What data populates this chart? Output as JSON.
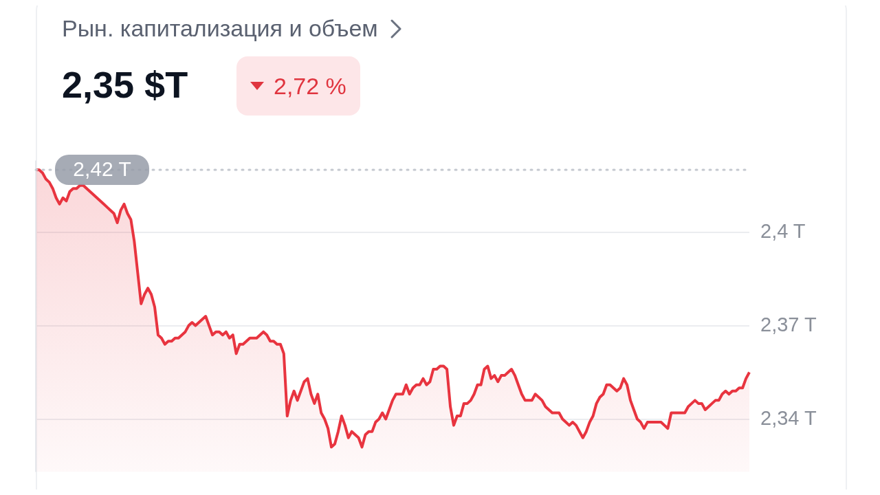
{
  "chart_data": {
    "type": "area",
    "title": "Рын. капитализация и объем",
    "subtitle": "2,35 $T",
    "annotations": [
      "2,72 %"
    ],
    "categories": [
      null,
      null,
      null,
      null,
      null,
      null,
      null,
      null,
      null,
      null,
      null,
      null,
      null,
      null,
      null,
      null,
      null,
      null,
      null,
      null,
      null,
      null,
      null,
      null,
      null,
      null,
      null,
      null,
      null,
      null,
      null,
      null,
      null,
      null,
      null,
      null,
      null,
      null,
      null,
      null,
      null,
      null,
      null,
      null,
      null,
      null,
      null,
      null,
      null,
      null,
      null,
      null,
      null,
      null,
      null,
      null,
      null,
      null,
      null,
      null,
      null,
      null,
      null,
      null,
      null,
      null,
      null,
      null,
      null,
      null,
      null,
      null,
      null,
      null,
      null,
      null,
      null,
      null,
      null,
      null,
      null,
      null,
      null,
      null,
      null,
      null,
      null,
      null,
      null,
      null,
      null,
      null,
      null,
      null,
      null,
      null,
      null,
      null,
      null,
      null,
      null,
      null,
      null,
      null,
      null,
      null,
      null,
      null,
      null,
      null,
      null,
      null,
      null,
      null,
      null,
      null,
      null,
      null,
      null,
      null,
      null,
      null,
      null,
      null,
      null,
      null,
      null,
      null,
      null,
      null,
      null,
      null,
      null,
      null,
      null,
      null,
      null,
      null,
      null,
      null,
      null,
      null,
      null,
      null,
      null,
      null,
      null,
      null,
      null,
      null,
      null,
      null,
      null,
      null,
      null,
      null,
      null,
      null,
      null,
      null,
      null,
      null,
      null,
      null,
      null,
      null,
      null,
      null,
      null,
      null,
      null,
      null,
      null,
      null,
      null,
      null,
      null,
      null,
      null,
      null,
      null,
      null,
      null,
      null,
      null,
      null,
      null,
      null,
      null,
      null,
      null,
      null,
      null,
      null,
      null,
      null,
      null,
      null,
      null,
      null,
      null,
      null,
      null,
      null,
      null,
      null,
      null,
      null,
      null,
      null,
      null
    ],
    "series": [
      {
        "color": "#e8343f",
        "values": [
          2.42,
          2.42,
          2.419,
          2.417,
          2.416,
          2.414,
          2.411,
          2.409,
          2.411,
          2.41,
          2.413,
          2.414,
          2.414,
          2.415,
          2.415,
          2.414,
          2.413,
          2.412,
          2.411,
          2.41,
          2.409,
          2.408,
          2.407,
          2.406,
          2.403,
          2.407,
          2.409,
          2.406,
          2.404,
          2.397,
          2.387,
          2.377,
          2.38,
          2.382,
          2.38,
          2.376,
          2.367,
          2.366,
          2.364,
          2.365,
          2.365,
          2.366,
          2.366,
          2.367,
          2.368,
          2.37,
          2.371,
          2.37,
          2.371,
          2.372,
          2.373,
          2.37,
          2.367,
          2.368,
          2.368,
          2.367,
          2.368,
          2.366,
          2.367,
          2.361,
          2.364,
          2.364,
          2.365,
          2.366,
          2.366,
          2.366,
          2.367,
          2.368,
          2.367,
          2.365,
          2.365,
          2.364,
          2.364,
          2.361,
          2.341,
          2.346,
          2.349,
          2.346,
          2.349,
          2.352,
          2.353,
          2.348,
          2.345,
          2.348,
          2.342,
          2.34,
          2.337,
          2.331,
          2.332,
          2.336,
          2.341,
          2.338,
          2.334,
          2.336,
          2.335,
          2.334,
          2.331,
          2.335,
          2.336,
          2.336,
          2.339,
          2.34,
          2.342,
          2.34,
          2.343,
          2.346,
          2.348,
          2.348,
          2.348,
          2.351,
          2.348,
          2.35,
          2.351,
          2.351,
          2.353,
          2.351,
          2.352,
          2.356,
          2.356,
          2.357,
          2.357,
          2.356,
          2.344,
          2.338,
          2.341,
          2.341,
          2.345,
          2.345,
          2.346,
          2.348,
          2.351,
          2.351,
          2.356,
          2.357,
          2.353,
          2.354,
          2.352,
          2.354,
          2.354,
          2.355,
          2.356,
          2.354,
          2.351,
          2.348,
          2.346,
          2.346,
          2.346,
          2.348,
          2.347,
          2.346,
          2.344,
          2.343,
          2.342,
          2.342,
          2.342,
          2.34,
          2.339,
          2.338,
          2.339,
          2.338,
          2.336,
          2.334,
          2.336,
          2.339,
          2.341,
          2.345,
          2.347,
          2.348,
          2.351,
          2.351,
          2.35,
          2.349,
          2.35,
          2.353,
          2.351,
          2.346,
          2.343,
          2.34,
          2.339,
          2.337,
          2.339,
          2.339,
          2.339,
          2.339,
          2.339,
          2.338,
          2.337,
          2.342,
          2.342,
          2.342,
          2.342,
          2.342,
          2.344,
          2.345,
          2.346,
          2.345,
          2.345,
          2.343,
          2.344,
          2.345,
          2.346,
          2.346,
          2.348,
          2.349,
          2.348,
          2.349,
          2.349,
          2.35,
          2.35,
          2.353,
          2.355
        ]
      }
    ],
    "ylim": [
      2.323,
      2.423
    ],
    "yticks": [
      {
        "value": 2.34,
        "label": "2,34 T"
      },
      {
        "value": 2.37,
        "label": "2,37 T"
      },
      {
        "value": 2.4,
        "label": "2,4 T"
      }
    ],
    "grid": "y",
    "tick_labels": "y",
    "line_style": "solid",
    "ref_lines": [
      {
        "axis": "y",
        "value": 2.42,
        "label": "2,42 T",
        "line_style": "dotted",
        "color": "#c4c8cf"
      }
    ]
  }
}
